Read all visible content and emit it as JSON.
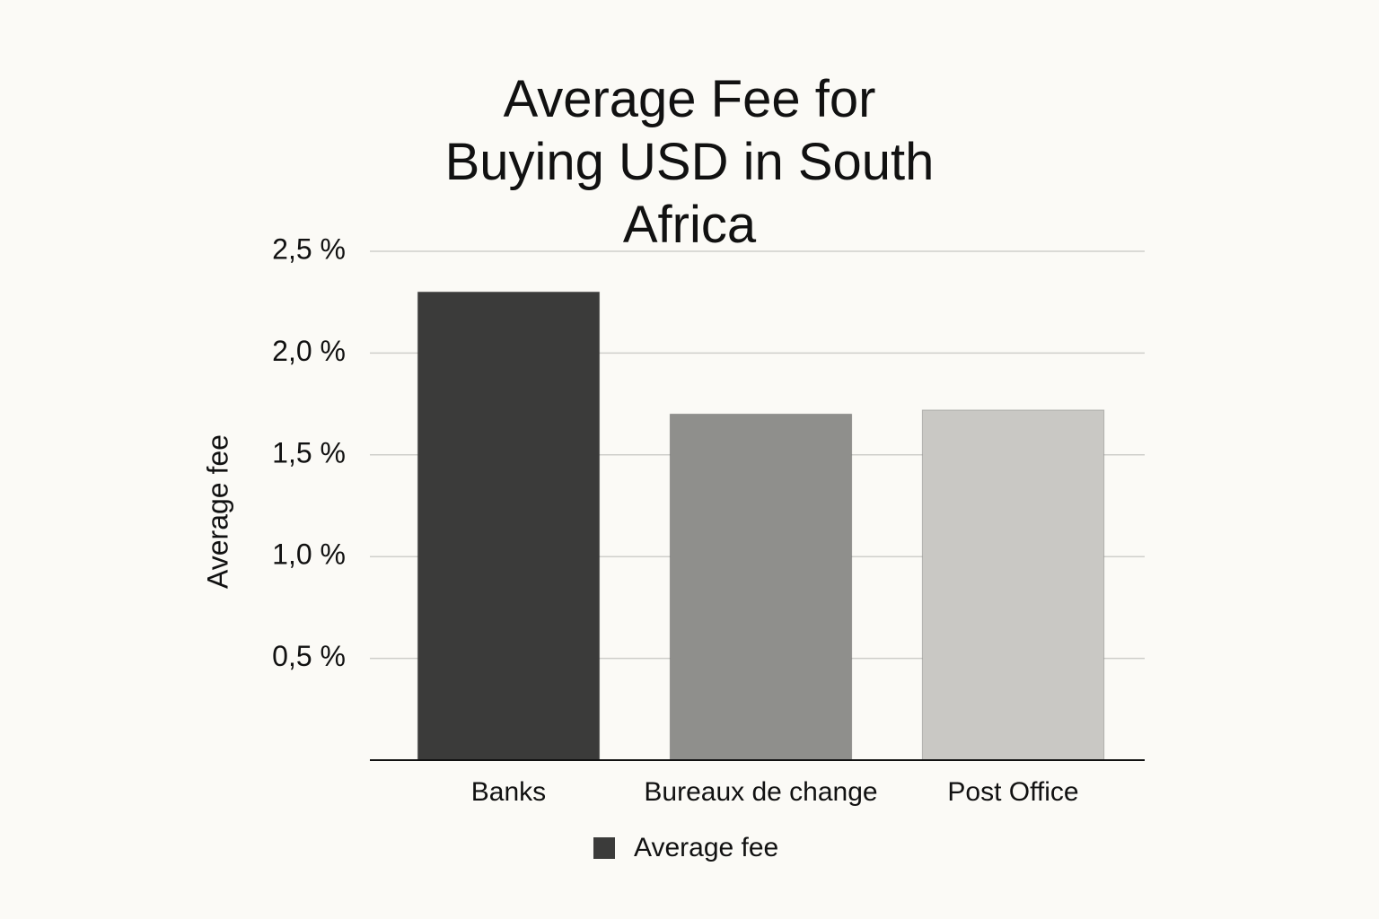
{
  "chart_data": {
    "type": "bar",
    "title": "Average Fee for Buying USD in South Africa",
    "y_label": "Average fee",
    "categories": [
      "Banks",
      "Bureaux de change",
      "Post Office"
    ],
    "series": [
      {
        "name": "Average fee",
        "color": "#3b3b3a",
        "values": [
          2.3,
          1.7,
          1.72
        ]
      }
    ],
    "bar_colors": [
      "#3b3b3a",
      "#8f8f8c",
      "#c9c8c4"
    ],
    "ylim": [
      0,
      2.5
    ],
    "yticks": [
      {
        "value": 0.5,
        "label": "0,5 %"
      },
      {
        "value": 1.0,
        "label": "1,0 %"
      },
      {
        "value": 1.5,
        "label": "1,5 %"
      },
      {
        "value": 2.0,
        "label": "2,0 %"
      },
      {
        "value": 2.5,
        "label": "2,5 %"
      }
    ],
    "grid": true,
    "legend": "bottom"
  }
}
